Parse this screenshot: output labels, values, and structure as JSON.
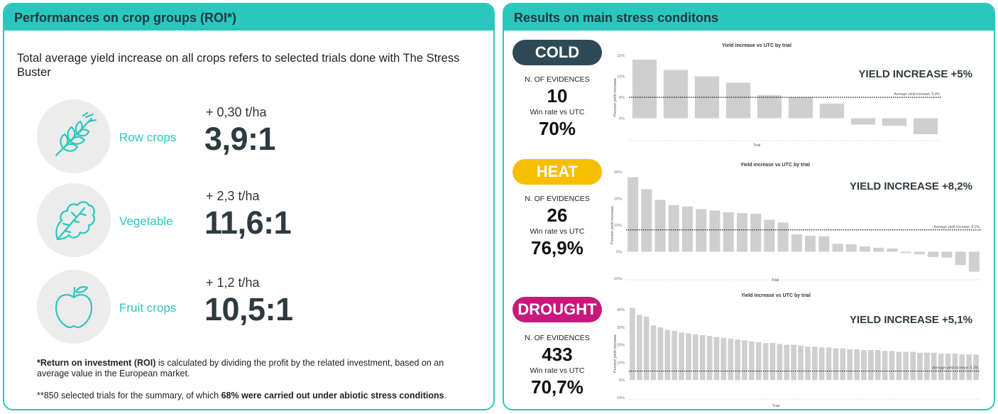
{
  "left": {
    "header": "Performances on crop groups (ROI*)",
    "intro": "Total average yield increase on all crops refers to selected trials done with The Stress Buster",
    "crops": [
      {
        "label": "Row crops",
        "increase": "+ 0,30 t/ha",
        "roi": "3,9:1",
        "icon": "wheat-icon"
      },
      {
        "label": "Vegetable",
        "increase": "+ 2,3 t/ha",
        "roi": "11,6:1",
        "icon": "leaf-icon"
      },
      {
        "label": "Fruit crops",
        "increase": "+ 1,2 t/ha",
        "roi": "10,5:1",
        "icon": "apple-icon"
      }
    ],
    "footnote1_bold": "*Return on investment (ROI)",
    "footnote1_rest": " is calculated by dividing the profit by the related investment, based on an average value in the European market.",
    "footnote2_start": "**850 selected trials for the summary, of which ",
    "footnote2_bold": "68% were carried out under abiotic stress conditions",
    "footnote2_end": "."
  },
  "right": {
    "header": "Results on main stress conditons",
    "evidences_label": "N. OF EVIDENCES",
    "winrate_label": "Win rate vs UTC",
    "colors": {
      "cold": "#2e4a56",
      "heat": "#f7be00",
      "drought": "#c8187c",
      "teal": "#2ac7bd",
      "bar": "#cfcfcf"
    }
  },
  "chart_data": [
    {
      "type": "bar",
      "stress": "COLD",
      "evidences": "10",
      "win_rate": "70%",
      "yield_increase": "YIELD INCREASE +5%",
      "title": "Yield increase vs UTC by trial",
      "xlabel": "Trial",
      "ylabel": "Percent yield increase",
      "ylim": [
        -5,
        15
      ],
      "yticks": [
        "15%",
        "10%",
        "5%",
        "0%"
      ],
      "ytick_values": [
        15,
        10,
        5,
        0
      ],
      "average_label": "Average yield increase: 5,0%",
      "average": 5.0,
      "values": [
        14,
        11.5,
        10,
        8.5,
        5.5,
        5,
        3.5,
        -1.5,
        -1.8,
        -3.8
      ]
    },
    {
      "type": "bar",
      "stress": "HEAT",
      "evidences": "26",
      "win_rate": "76,9%",
      "yield_increase": "YIELD INCREASE +8,2%",
      "title": "Yield increase vs UTC by trial",
      "xlabel": "Trial",
      "ylabel": "Percent yield increase",
      "ylim": [
        -10,
        30
      ],
      "yticks": [
        "30%",
        "20%",
        "10%",
        "0%",
        "-10%"
      ],
      "ytick_values": [
        30,
        20,
        10,
        0,
        -10
      ],
      "average_label": "Average yield increase: 8,2%",
      "average": 8.2,
      "values": [
        28,
        23.5,
        19.5,
        17.5,
        17,
        16,
        15.5,
        14.8,
        14.5,
        14.3,
        12,
        11,
        6.5,
        6,
        5.8,
        3,
        2.8,
        2,
        1.5,
        1.2,
        -0.5,
        -1,
        -2,
        -2.2,
        -5,
        -7.5
      ]
    },
    {
      "type": "bar",
      "stress": "DROUGHT",
      "evidences": "433",
      "win_rate": "70,7%",
      "yield_increase": "YIELD INCREASE +5,1%",
      "title": "Yield increase vs UTC by trial",
      "xlabel": "Trial",
      "ylabel": "Percent yield increase",
      "ylim": [
        -10,
        40
      ],
      "yticks": [
        "40%",
        "30%",
        "20%",
        "10%",
        "0%",
        "-10%"
      ],
      "ytick_values": [
        40,
        30,
        20,
        10,
        0,
        -10
      ],
      "average_label": "Average yield increase: 5,1%",
      "average": 5.1,
      "values": [
        41,
        37,
        36,
        31,
        30,
        28.5,
        28,
        27,
        26.5,
        26,
        25.5,
        25,
        24.5,
        24,
        23.5,
        23,
        22.5,
        22,
        21.5,
        21,
        21,
        20.5,
        20,
        20,
        19.5,
        19,
        19,
        18.5,
        18.5,
        18,
        18,
        17.5,
        17.5,
        17,
        17,
        17,
        16.5,
        16.5,
        16,
        16,
        16,
        15.5,
        15.5,
        15.5,
        15,
        15,
        15,
        14.5,
        14.5,
        14.5
      ]
    }
  ]
}
